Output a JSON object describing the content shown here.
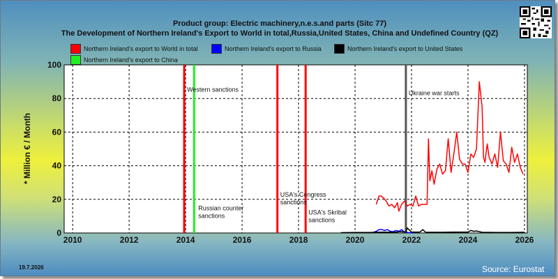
{
  "chart_data": {
    "type": "line",
    "title": "Product group: Electric machinery,n.e.s.and parts (Sitc 77)",
    "subtitle": "The Development of Northern Ireland's Export to World in total,Russia,United States, China and Undefined Country (QZ)",
    "xlabel": "",
    "ylabel": "* Million € / Month",
    "xlim": [
      2009.7,
      2026.1
    ],
    "ylim": [
      0,
      100
    ],
    "x_ticks": [
      "2010",
      "2012",
      "2014",
      "2016",
      "2018",
      "2020",
      "2022",
      "2024",
      "2026"
    ],
    "y_ticks": [
      "0",
      "20",
      "40",
      "60",
      "80",
      "100"
    ],
    "grid": true,
    "legend_placement": "top",
    "series": [
      {
        "name": "Northern Ireland's export to World in total",
        "color": "#ff0000",
        "x": [
          2020.75,
          2020.85,
          2020.92,
          2021.0,
          2021.1,
          2021.2,
          2021.3,
          2021.4,
          2021.5,
          2021.55,
          2021.65,
          2021.75,
          2021.85,
          2021.95,
          2022.05,
          2022.15,
          2022.25,
          2022.35,
          2022.45,
          2022.55,
          2022.6,
          2022.65,
          2022.72,
          2022.8,
          2022.9,
          2023.0,
          2023.1,
          2023.2,
          2023.3,
          2023.4,
          2023.5,
          2023.6,
          2023.7,
          2023.8,
          2023.9,
          2024.0,
          2024.1,
          2024.2,
          2024.3,
          2024.4,
          2024.5,
          2024.55,
          2024.6,
          2024.68,
          2024.75,
          2024.85,
          2024.95,
          2025.05,
          2025.15,
          2025.25,
          2025.35,
          2025.45,
          2025.55,
          2025.65,
          2025.75,
          2025.85,
          2025.95
        ],
        "values": [
          17,
          22,
          22,
          21,
          19,
          16,
          17,
          15,
          18,
          13,
          17,
          19,
          16,
          17,
          16,
          22,
          16,
          17,
          17,
          17,
          56,
          31,
          37,
          29,
          38,
          41,
          35,
          37,
          56,
          36,
          47,
          60,
          44,
          41,
          41,
          36,
          47,
          45,
          50,
          90,
          75,
          45,
          42,
          53,
          45,
          41,
          47,
          39,
          60,
          43,
          41,
          36,
          51,
          42,
          47,
          39,
          35
        ]
      },
      {
        "name": "Northern Ireland's export to Russia",
        "color": "#0000ff",
        "x": [
          2020.6,
          2020.75,
          2020.85,
          2020.95,
          2021.05,
          2021.15,
          2021.25,
          2021.35,
          2021.45,
          2021.55,
          2021.65,
          2021.75,
          2021.9,
          2022.1
        ],
        "values": [
          0,
          1,
          2,
          2,
          1.5,
          2,
          1,
          0.8,
          1.5,
          1,
          2,
          0.5,
          0.2,
          0
        ]
      },
      {
        "name": "Northern Ireland's export to United States",
        "color": "#000000",
        "x": [
          2019.5,
          2020.0,
          2020.5,
          2021.0,
          2021.4,
          2021.6,
          2021.8,
          2021.85,
          2022.0,
          2022.3,
          2022.4,
          2022.5,
          2023.0,
          2023.5,
          2024.0,
          2024.1,
          2024.2,
          2024.3,
          2024.4,
          2024.5,
          2025.0,
          2025.5,
          2026.0
        ],
        "values": [
          0.2,
          0.3,
          0.3,
          0.5,
          0.4,
          0.8,
          0.6,
          3,
          0.5,
          0.6,
          2,
          0.4,
          0.4,
          0.5,
          0.5,
          1.5,
          1,
          1.2,
          0.8,
          0.4,
          0.3,
          0.3,
          0.4
        ]
      },
      {
        "name": "Northern Ireland's export to China",
        "color": "#22ee22",
        "x": [],
        "values": []
      }
    ],
    "events": [
      {
        "x": 2013.95,
        "label": "",
        "color": "#ff0000",
        "text_lines": []
      },
      {
        "x": 2014.3,
        "label": "",
        "color": "#22ee22",
        "text_lines": []
      },
      {
        "x": 2017.25,
        "label": "",
        "color": "#ff0000",
        "text_lines": []
      },
      {
        "x": 2018.25,
        "label": "",
        "color": "#ff0000",
        "text_lines": []
      },
      {
        "x": 2021.8,
        "label": "",
        "color": "#555555",
        "text_lines": []
      }
    ],
    "annotations": [
      {
        "text_lines": [
          "Western sanctions"
        ],
        "x": 2014.0,
        "y": 84
      },
      {
        "text_lines": [
          "Russian counter",
          "sanctions"
        ],
        "x": 2014.4,
        "y": 13.5
      },
      {
        "text_lines": [
          "USA's Congress",
          "sanctions"
        ],
        "x": 2017.3,
        "y": 21.5
      },
      {
        "text_lines": [
          "USA's Skribal",
          "sanctions"
        ],
        "x": 2018.3,
        "y": 11
      },
      {
        "text_lines": [
          "Ukraine war starts"
        ],
        "x": 2021.85,
        "y": 82
      }
    ]
  },
  "footer": {
    "date": "19.7.2026",
    "source": "Source: Eurostat"
  },
  "colors": {
    "plot_bg": "#ffffff",
    "grid": "#000000"
  },
  "icons": {
    "qr": "qr-code-icon"
  }
}
